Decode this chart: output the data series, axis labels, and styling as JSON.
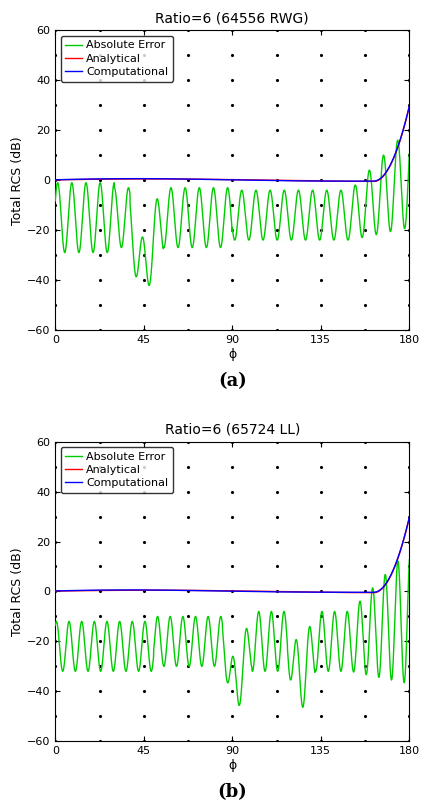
{
  "title_a": "Ratio=6 (64556 RWG)",
  "title_b": "Ratio=6 (65724 LL)",
  "xlabel": "ϕ",
  "ylabel": "Total RCS (dB)",
  "label_analytical": "Analytical",
  "label_computational": "Computational",
  "label_error": "Absolute Error",
  "color_analytical": "#ff0000",
  "color_computational": "#0000ff",
  "color_error": "#00cc00",
  "xlim": [
    0,
    180
  ],
  "ylim": [
    -60,
    60
  ],
  "xticks": [
    0,
    45,
    90,
    135,
    180
  ],
  "yticks": [
    -60,
    -40,
    -20,
    0,
    20,
    40,
    60
  ],
  "caption_a": "(a)",
  "caption_b": "(b)",
  "fig_width": 4.31,
  "fig_height": 8.1,
  "dpi": 100,
  "line_width": 1.0,
  "title_fontsize": 10,
  "label_fontsize": 9,
  "tick_fontsize": 8,
  "legend_fontsize": 8,
  "caption_fontsize": 13
}
